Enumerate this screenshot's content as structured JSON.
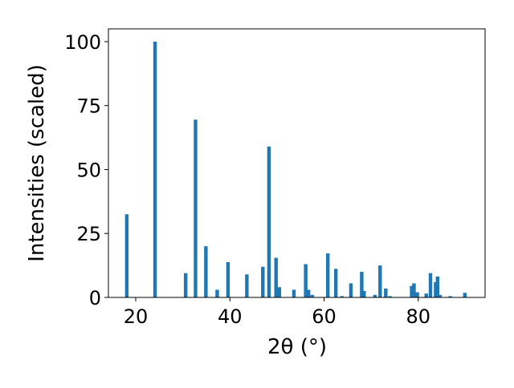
{
  "chart_data": {
    "type": "bar",
    "title": "",
    "xlabel": "2θ (°)",
    "ylabel": "Intensities (scaled)",
    "xlim": [
      14.2,
      94.2
    ],
    "ylim": [
      0,
      105
    ],
    "xticks": [
      20,
      40,
      60,
      80
    ],
    "yticks": [
      0,
      25,
      50,
      75,
      100
    ],
    "grid": false,
    "legend": "none",
    "bar_color": "#1f77b4",
    "bar_width_deg": 0.75,
    "points": [
      {
        "x": 18.1,
        "y": 32.5
      },
      {
        "x": 24.1,
        "y": 100
      },
      {
        "x": 30.6,
        "y": 9.5
      },
      {
        "x": 32.7,
        "y": 69.5
      },
      {
        "x": 34.9,
        "y": 20
      },
      {
        "x": 37.3,
        "y": 3
      },
      {
        "x": 39.6,
        "y": 13.8
      },
      {
        "x": 43.6,
        "y": 9
      },
      {
        "x": 47.0,
        "y": 12
      },
      {
        "x": 48.3,
        "y": 59
      },
      {
        "x": 49.8,
        "y": 15.5
      },
      {
        "x": 50.5,
        "y": 4
      },
      {
        "x": 53.6,
        "y": 3
      },
      {
        "x": 56.1,
        "y": 13
      },
      {
        "x": 56.7,
        "y": 3
      },
      {
        "x": 57.5,
        "y": 1
      },
      {
        "x": 60.8,
        "y": 17.2
      },
      {
        "x": 62.5,
        "y": 11.2
      },
      {
        "x": 63.8,
        "y": 0.5
      },
      {
        "x": 65.7,
        "y": 5.5
      },
      {
        "x": 68.0,
        "y": 10
      },
      {
        "x": 68.5,
        "y": 2.5
      },
      {
        "x": 70.8,
        "y": 1
      },
      {
        "x": 71.9,
        "y": 12.5
      },
      {
        "x": 73.1,
        "y": 3.5
      },
      {
        "x": 74.0,
        "y": 0.5
      },
      {
        "x": 78.6,
        "y": 4.5
      },
      {
        "x": 79.1,
        "y": 5.5
      },
      {
        "x": 79.8,
        "y": 2
      },
      {
        "x": 81.7,
        "y": 1.5
      },
      {
        "x": 82.6,
        "y": 9.5
      },
      {
        "x": 83.7,
        "y": 6
      },
      {
        "x": 84.1,
        "y": 8.2
      },
      {
        "x": 84.6,
        "y": 1
      },
      {
        "x": 86.8,
        "y": 0.5
      },
      {
        "x": 89.9,
        "y": 1.8
      }
    ]
  }
}
